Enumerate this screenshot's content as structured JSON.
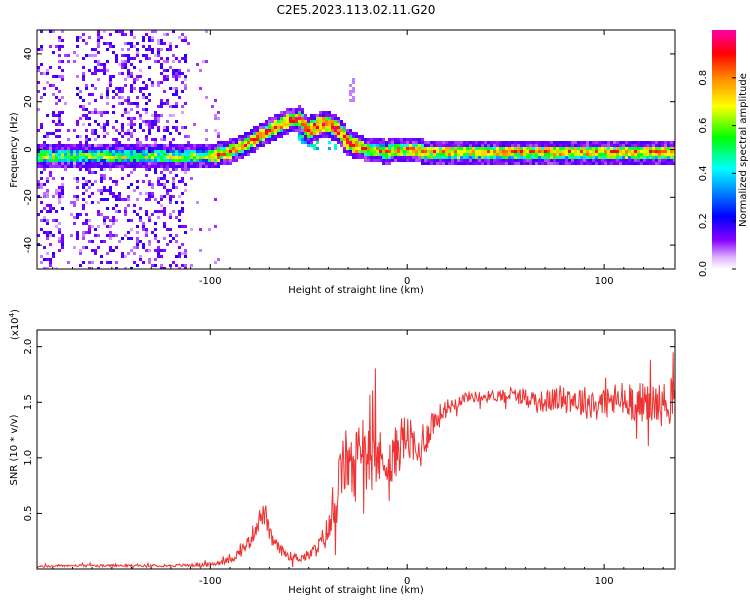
{
  "title": "C2E5.2023.113.02.11.G20",
  "chart_data": [
    {
      "type": "heatmap",
      "description_free": true,
      "xlabel": "Height of straight line (km)",
      "ylabel": "Frequency (Hz)",
      "xlim": [
        -188,
        136
      ],
      "ylim": [
        -50,
        50
      ],
      "xticks": [
        -100,
        0,
        100
      ],
      "yticks": [
        -40,
        -20,
        0,
        20,
        40
      ],
      "ridge": {
        "x": [
          -185,
          -170,
          -160,
          -150,
          -140,
          -130,
          -120,
          -110,
          -100,
          -90,
          -80,
          -70,
          -60,
          -55,
          -50,
          -45,
          -40,
          -35,
          -30,
          -25,
          -20,
          -10,
          0,
          10,
          20,
          40,
          60,
          80,
          100,
          120,
          136
        ],
        "y": [
          -3,
          -3,
          -3,
          -3,
          -3,
          -3,
          -3,
          -3,
          -3,
          -1,
          3,
          8,
          12,
          13,
          8,
          10,
          11,
          8,
          3,
          1,
          0,
          -1,
          0,
          -1,
          -1,
          -1,
          -1,
          -1,
          -1,
          -1,
          -1
        ]
      },
      "colorbar": {
        "label": "Normalized spectral amplitude",
        "ticks": [
          "0.0",
          "0.2",
          "0.4",
          "0.6",
          "0.8"
        ],
        "tick_values": [
          0.0,
          0.2,
          0.4,
          0.6,
          0.8
        ],
        "range": [
          0,
          1
        ],
        "colormap": [
          "#ffffff",
          "#8800ff",
          "#0000ff",
          "#00ffff",
          "#00ff00",
          "#ffff00",
          "#ff8800",
          "#ff0000",
          "#ff00aa"
        ]
      }
    },
    {
      "type": "line",
      "xlabel": "Height of straight line (km)",
      "ylabel": "SNR (10 * v/v)",
      "y_multiplier": "(x10",
      "y_multiplier_exp": "4",
      "y_multiplier_close": ")",
      "xlim": [
        -188,
        136
      ],
      "ylim": [
        0,
        2.15
      ],
      "xticks": [
        -100,
        0,
        100
      ],
      "yticks": [
        0.5,
        1.0,
        1.5,
        2.0
      ],
      "ytick_labels": [
        "0.5",
        "1.0",
        "1.5",
        "2.0"
      ],
      "color": "#ee3333",
      "series": [
        {
          "x": [
            -188,
            -175,
            -160,
            -140,
            -120,
            -100,
            -90,
            -85,
            -80,
            -75,
            -72,
            -70,
            -65,
            -60,
            -55,
            -50,
            -45,
            -40,
            -37,
            -35,
            -33,
            -30,
            -27,
            -25,
            -22,
            -20,
            -18,
            -15,
            -12,
            -10,
            -8,
            -5,
            -3,
            0,
            3,
            5,
            8,
            10,
            12,
            15,
            20,
            25,
            30,
            40,
            50,
            60,
            70,
            80,
            90,
            100,
            110,
            120,
            130,
            136
          ],
          "y": [
            0.02,
            0.03,
            0.03,
            0.03,
            0.03,
            0.04,
            0.08,
            0.15,
            0.25,
            0.45,
            0.5,
            0.3,
            0.18,
            0.12,
            0.1,
            0.12,
            0.2,
            0.35,
            0.5,
            0.7,
            0.9,
            1.0,
            0.8,
            1.1,
            1.2,
            0.9,
            1.1,
            1.0,
            0.95,
            1.05,
            0.9,
            1.1,
            1.15,
            1.2,
            1.1,
            1.0,
            1.15,
            1.2,
            1.3,
            1.35,
            1.45,
            1.5,
            1.55,
            1.55,
            1.57,
            1.55,
            1.5,
            1.55,
            1.5,
            1.5,
            1.52,
            1.5,
            1.48,
            1.5
          ],
          "noise": [
            0.01,
            0.01,
            0.01,
            0.01,
            0.01,
            0.02,
            0.03,
            0.05,
            0.07,
            0.1,
            0.1,
            0.08,
            0.05,
            0.04,
            0.04,
            0.05,
            0.08,
            0.15,
            0.2,
            0.25,
            0.3,
            0.3,
            0.3,
            0.3,
            0.3,
            0.3,
            0.3,
            0.3,
            0.25,
            0.25,
            0.25,
            0.25,
            0.25,
            0.2,
            0.2,
            0.2,
            0.2,
            0.15,
            0.15,
            0.12,
            0.08,
            0.06,
            0.05,
            0.05,
            0.06,
            0.08,
            0.1,
            0.12,
            0.15,
            0.15,
            0.18,
            0.18,
            0.2,
            0.2
          ]
        }
      ]
    }
  ]
}
